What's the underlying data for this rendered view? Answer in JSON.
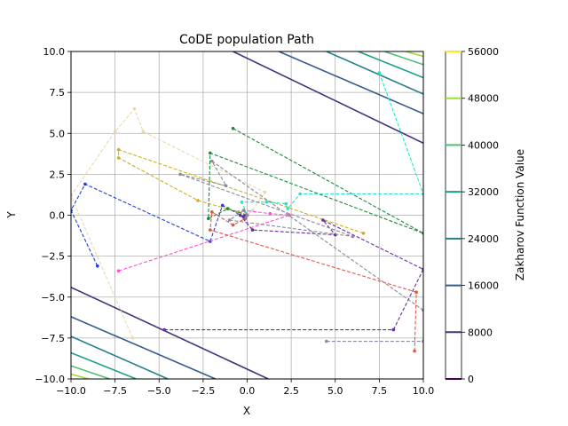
{
  "chart_data": {
    "type": "line",
    "title": "CoDE population Path",
    "xlabel": "X",
    "ylabel": "Y",
    "xlim": [
      -10,
      10
    ],
    "ylim": [
      -10,
      10
    ],
    "grid": true,
    "xticks": [
      "−10.0",
      "−7.5",
      "−5.0",
      "−2.5",
      "0.0",
      "2.5",
      "5.0",
      "7.5",
      "10.0"
    ],
    "yticks": [
      "−10.0",
      "−7.5",
      "−5.0",
      "−2.5",
      "0.0",
      "2.5",
      "5.0",
      "7.5",
      "10.0"
    ],
    "colorbar": {
      "label": "Zakharov Function Value",
      "ticks": [
        "0",
        "8000",
        "16000",
        "24000",
        "32000",
        "40000",
        "48000",
        "56000"
      ],
      "values": [
        0,
        8000,
        16000,
        24000,
        32000,
        40000,
        48000,
        56000
      ],
      "colors": [
        "#440154",
        "#46327e",
        "#365c8d",
        "#277f8e",
        "#1fa187",
        "#4ac16d",
        "#a0da39",
        "#fde725"
      ]
    },
    "contours": [
      {
        "level": 8000,
        "color": "#46327e",
        "segments": [
          [
            [
              -0.8,
              10
            ],
            [
              10,
              4.4
            ]
          ],
          [
            [
              -10,
              -4.4
            ],
            [
              1.2,
              -10
            ]
          ]
        ]
      },
      {
        "level": 16000,
        "color": "#365c8d",
        "segments": [
          [
            [
              1.8,
              10
            ],
            [
              10,
              6.2
            ]
          ],
          [
            [
              -10,
              -6.2
            ],
            [
              -1.8,
              -10
            ]
          ]
        ]
      },
      {
        "level": 24000,
        "color": "#277f8e",
        "segments": [
          [
            [
              4.5,
              10
            ],
            [
              10,
              7.4
            ]
          ],
          [
            [
              -10,
              -7.4
            ],
            [
              -4.5,
              -10
            ]
          ]
        ]
      },
      {
        "level": 32000,
        "color": "#1fa187",
        "segments": [
          [
            [
              6.3,
              10
            ],
            [
              10,
              8.4
            ]
          ],
          [
            [
              -10,
              -8.4
            ],
            [
              -6.3,
              -10
            ]
          ]
        ]
      },
      {
        "level": 40000,
        "color": "#4ac16d",
        "segments": [
          [
            [
              7.8,
              10
            ],
            [
              10,
              9.2
            ]
          ],
          [
            [
              -10,
              -9.2
            ],
            [
              -7.8,
              -10
            ]
          ]
        ]
      },
      {
        "level": 48000,
        "color": "#a0da39",
        "segments": [
          [
            [
              9.0,
              10
            ],
            [
              10,
              9.7
            ]
          ],
          [
            [
              -10,
              -9.7
            ],
            [
              -9.0,
              -10
            ]
          ]
        ]
      }
    ],
    "series": [
      {
        "color": "#1f3fd6",
        "points": [
          [
            -8.5,
            -3.1
          ],
          [
            -10,
            0.3
          ],
          [
            -9.2,
            1.9
          ],
          [
            -2.1,
            -1.6
          ],
          [
            -1.4,
            0.6
          ],
          [
            -0.2,
            -0.1
          ],
          [
            0,
            0
          ]
        ]
      },
      {
        "color": "#c8b028",
        "points": [
          [
            6.6,
            -1.1
          ],
          [
            -7.3,
            4.0
          ],
          [
            -7.3,
            3.5
          ],
          [
            -2.8,
            0.9
          ],
          [
            -0.5,
            0.2
          ],
          [
            0,
            0
          ]
        ]
      },
      {
        "color": "#e8d8b0",
        "points": [
          [
            -6.5,
            -7.5
          ],
          [
            -10,
            1.2
          ],
          [
            -7.5,
            5.1
          ],
          [
            -6.4,
            6.5
          ],
          [
            -5.9,
            5.1
          ],
          [
            1.0,
            1.4
          ],
          [
            0.3,
            0.3
          ],
          [
            0,
            0
          ]
        ]
      },
      {
        "color": "#1a8a3a",
        "points": [
          [
            -0.8,
            5.3
          ],
          [
            10,
            -1.1
          ],
          [
            -2.1,
            3.8
          ],
          [
            -2.2,
            -0.2
          ],
          [
            -1.1,
            0.4
          ],
          [
            0,
            0
          ]
        ]
      },
      {
        "color": "#22e8c8",
        "points": [
          [
            7.5,
            8.7
          ],
          [
            10,
            1.3
          ],
          [
            3.0,
            1.3
          ],
          [
            2.3,
            0.4
          ],
          [
            2.2,
            0.7
          ],
          [
            1.1,
            0.8
          ],
          [
            -0.3,
            0.8
          ],
          [
            0,
            0
          ]
        ]
      },
      {
        "color": "#ff50d0",
        "points": [
          [
            -7.3,
            -3.4
          ],
          [
            2.4,
            0.0
          ],
          [
            1.3,
            0.1
          ],
          [
            -0.2,
            0.3
          ],
          [
            0,
            0
          ]
        ]
      },
      {
        "color": "#d95a4a",
        "points": [
          [
            9.5,
            -8.3
          ],
          [
            9.6,
            -4.7
          ],
          [
            -2.1,
            -0.9
          ],
          [
            -2.0,
            0.2
          ],
          [
            -0.8,
            -0.6
          ],
          [
            -0.1,
            -0.2
          ],
          [
            0,
            0
          ]
        ]
      },
      {
        "color": "#6a2aa8",
        "points": [
          [
            -4.7,
            -7.0
          ],
          [
            8.3,
            -7.0
          ],
          [
            10,
            -3.3
          ],
          [
            4.3,
            -0.3
          ],
          [
            5.0,
            -1.2
          ],
          [
            0.3,
            -0.9
          ],
          [
            -0.4,
            0.0
          ],
          [
            0,
            0
          ]
        ]
      },
      {
        "color": "#8a8a9a",
        "points": [
          [
            4.5,
            -7.7
          ],
          [
            10,
            -7.7
          ],
          [
            10,
            -5.8
          ],
          [
            -2.0,
            3.3
          ],
          [
            -1.2,
            1.8
          ],
          [
            -3.8,
            2.5
          ],
          [
            6.0,
            -1.3
          ],
          [
            -1.0,
            -0.3
          ],
          [
            -0.2,
            0.3
          ],
          [
            0,
            0
          ]
        ]
      }
    ]
  }
}
